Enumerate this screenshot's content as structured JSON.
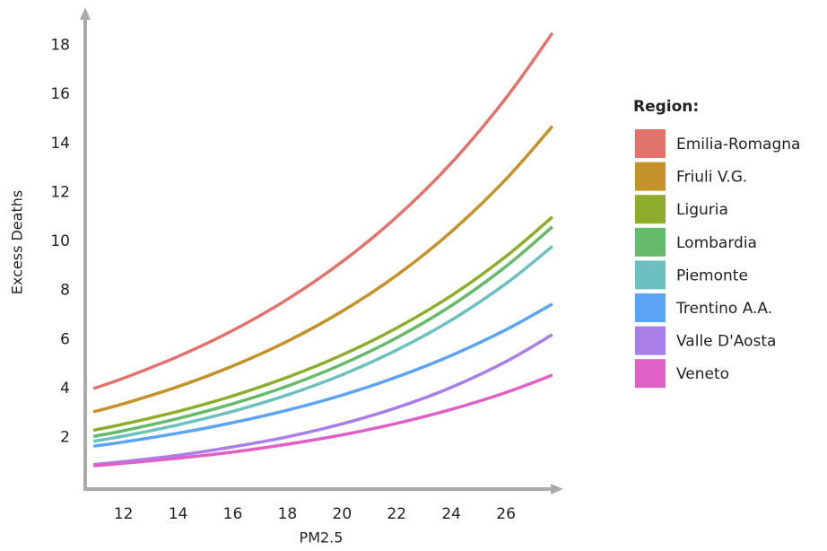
{
  "chart_data": {
    "type": "line",
    "x_label": "PM2.5",
    "y_label": "Excess Deaths",
    "legend_title": "Region:",
    "x": [
      10.9,
      12,
      14,
      16,
      18,
      20,
      22,
      24,
      26,
      27.7
    ],
    "xlim": [
      10.6,
      28
    ],
    "ylim": [
      -0.1,
      19.3
    ],
    "xticks": [
      12,
      14,
      16,
      18,
      20,
      22,
      24,
      26
    ],
    "yticks": [
      2,
      4,
      6,
      8,
      10,
      12,
      14,
      16,
      18
    ],
    "grid": false,
    "legend": "right",
    "series": [
      {
        "name": "Emilia-Romagna",
        "color": "#e2736c",
        "values": [
          4.0,
          4.42,
          5.31,
          6.37,
          7.64,
          9.17,
          11.0,
          13.2,
          15.85,
          18.5
        ]
      },
      {
        "name": "Friuli V.G.",
        "color": "#c4922a",
        "values": [
          3.05,
          3.38,
          4.08,
          4.92,
          5.93,
          7.15,
          8.62,
          10.4,
          12.54,
          14.7
        ]
      },
      {
        "name": "Liguria",
        "color": "#8ead2c",
        "values": [
          2.3,
          2.55,
          3.07,
          3.7,
          4.46,
          5.37,
          6.47,
          7.79,
          9.39,
          11.0
        ]
      },
      {
        "name": "Lombardia",
        "color": "#66bb6a",
        "values": [
          2.05,
          2.28,
          2.78,
          3.38,
          4.1,
          4.99,
          6.07,
          7.38,
          8.98,
          10.6
        ]
      },
      {
        "name": "Piemonte",
        "color": "#6cc0c0",
        "values": [
          1.85,
          2.06,
          2.52,
          3.07,
          3.74,
          4.56,
          5.57,
          6.79,
          8.28,
          9.8
        ]
      },
      {
        "name": "Trentino A.A.",
        "color": "#5ba3f5",
        "values": [
          1.65,
          1.82,
          2.18,
          2.61,
          3.12,
          3.73,
          4.47,
          5.35,
          6.4,
          7.45
        ]
      },
      {
        "name": "Valle D'Aosta",
        "color": "#a87fe8",
        "values": [
          0.9,
          1.02,
          1.28,
          1.62,
          2.03,
          2.56,
          3.22,
          4.05,
          5.1,
          6.2
        ]
      },
      {
        "name": "Veneto",
        "color": "#e060c8",
        "values": [
          0.85,
          0.95,
          1.16,
          1.41,
          1.73,
          2.11,
          2.58,
          3.15,
          3.84,
          4.55
        ]
      }
    ]
  }
}
